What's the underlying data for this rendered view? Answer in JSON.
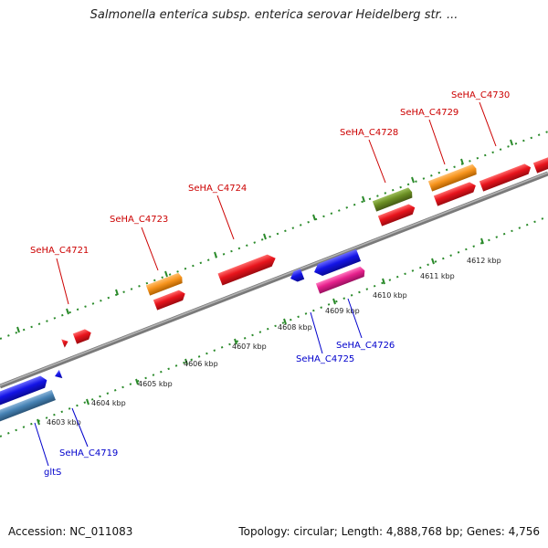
{
  "title": "Salmonella enterica subsp. enterica serovar Heidelberg str. ...",
  "footer": {
    "accession": "Accession: NC_011083",
    "info": "Topology: circular; Length: 4,888,768 bp; Genes: 4,756"
  },
  "colors": {
    "red": "#e8141c",
    "orange": "#f7941d",
    "olive": "#6b8e23",
    "blue": "#1414e6",
    "steelblue": "#4682b4",
    "magenta": "#e6208c",
    "backbone": "#8c8c8c",
    "tick": "#2a8a2a",
    "label_red": "#cc0000",
    "label_blue": "#0000cc"
  },
  "kbp_ticks": [
    "4603 kbp",
    "4604 kbp",
    "4605 kbp",
    "4606 kbp",
    "4607 kbp",
    "4608 kbp",
    "4609 kbp",
    "4610 kbp",
    "4611 kbp",
    "4612 kbp"
  ],
  "upper_labels": [
    "SeHA_C4721",
    "SeHA_C4723",
    "SeHA_C4724",
    "SeHA_C4728",
    "SeHA_C4729",
    "SeHA_C4730"
  ],
  "lower_labels": [
    "gltS",
    "SeHA_C4719",
    "SeHA_C4725",
    "SeHA_C4726"
  ]
}
